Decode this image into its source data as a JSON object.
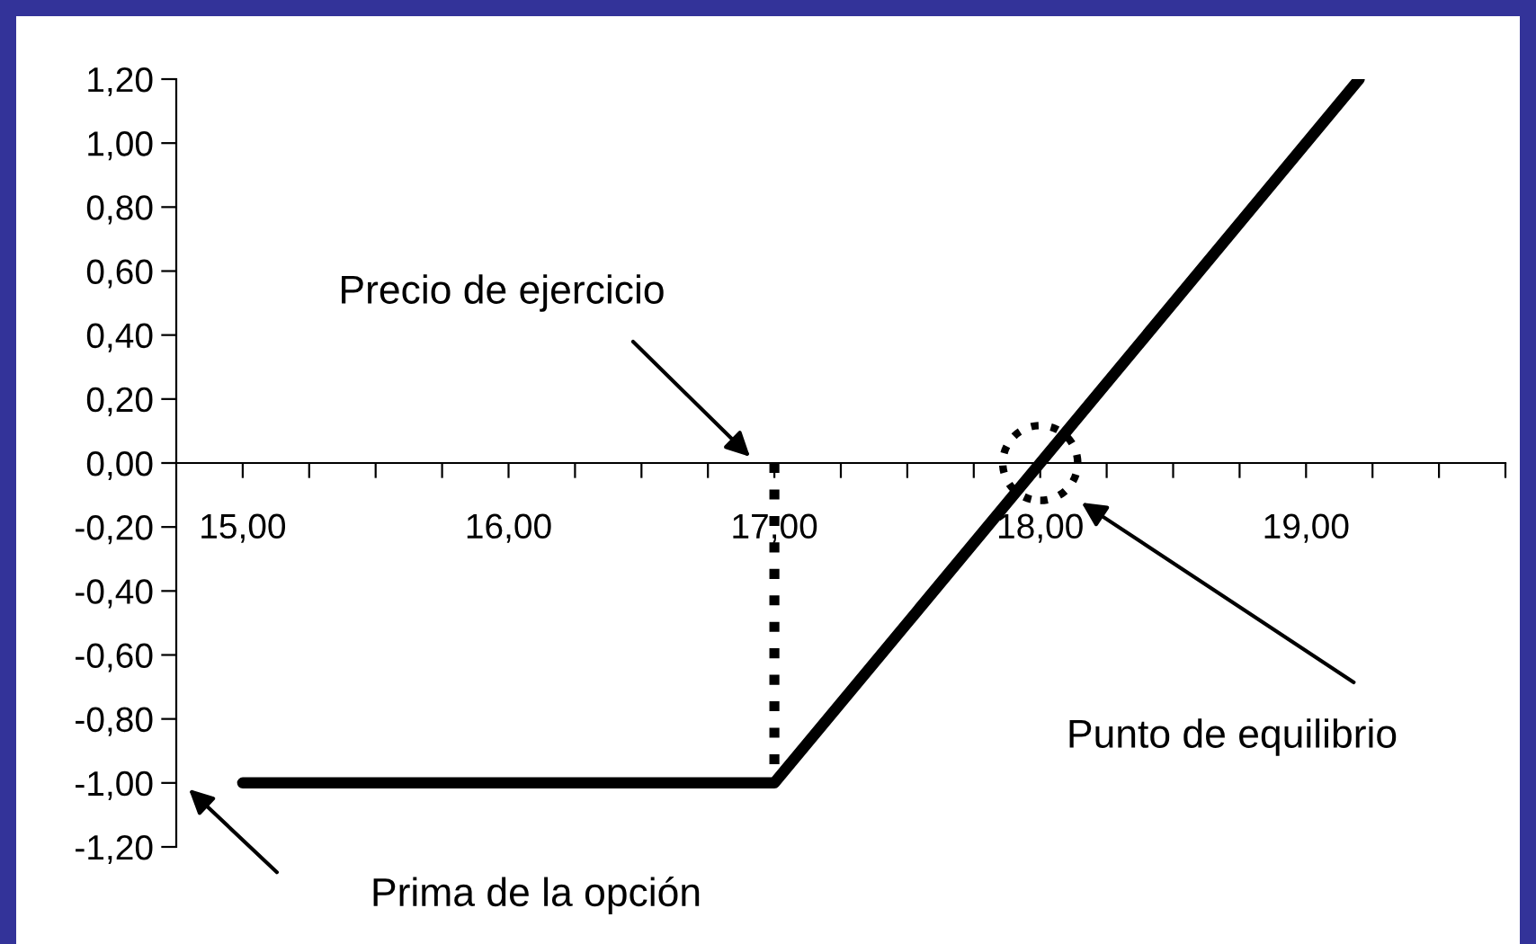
{
  "chart_data": {
    "type": "line",
    "series": [
      {
        "color": "#000000",
        "x": [
          15,
          17,
          19.2
        ],
        "values": [
          -1,
          -1,
          1.2
        ],
        "line_style": "solid",
        "marker": "none"
      },
      {
        "type": "line",
        "color": "#000000",
        "x": [
          17,
          17
        ],
        "values": [
          0,
          -1
        ],
        "line_style": "dotted",
        "marker": "none"
      },
      {
        "type": "scatter",
        "color": "#000000",
        "x": [
          18
        ],
        "values": [
          0
        ],
        "marker": "circle",
        "line_style": "dotted"
      }
    ],
    "xlim": [
      14.75,
      19.75
    ],
    "xticks": [
      {
        "value": 15,
        "label": "15,00"
      },
      {
        "value": 15.25,
        "label": null
      },
      {
        "value": 15.5,
        "label": null
      },
      {
        "value": 15.75,
        "label": null
      },
      {
        "value": 16,
        "label": "16,00"
      },
      {
        "value": 16.25,
        "label": null
      },
      {
        "value": 16.5,
        "label": null
      },
      {
        "value": 16.75,
        "label": null
      },
      {
        "value": 17,
        "label": "17,00"
      },
      {
        "value": 17.25,
        "label": null
      },
      {
        "value": 17.5,
        "label": null
      },
      {
        "value": 17.75,
        "label": null
      },
      {
        "value": 18,
        "label": "18,00"
      },
      {
        "value": 18.25,
        "label": null
      },
      {
        "value": 18.5,
        "label": null
      },
      {
        "value": 18.75,
        "label": null
      },
      {
        "value": 19,
        "label": "19,00"
      },
      {
        "value": 19.25,
        "label": null
      },
      {
        "value": 19.5,
        "label": null
      },
      {
        "value": 19.75,
        "label": null
      }
    ],
    "ylim": [
      -1.2,
      1.2
    ],
    "yticks": [
      {
        "value": -1.2,
        "label": "-1,20"
      },
      {
        "value": -1.0,
        "label": "-1,00"
      },
      {
        "value": -0.8,
        "label": "-0,80"
      },
      {
        "value": -0.6,
        "label": "-0,60"
      },
      {
        "value": -0.4,
        "label": "-0,40"
      },
      {
        "value": -0.2,
        "label": "-0,20"
      },
      {
        "value": 0,
        "label": "0,00"
      },
      {
        "value": 0.2,
        "label": "0,20"
      },
      {
        "value": 0.4,
        "label": "0,40"
      },
      {
        "value": 0.6,
        "label": "0,60"
      },
      {
        "value": 0.8,
        "label": "0,80"
      },
      {
        "value": 1.0,
        "label": "1,00"
      },
      {
        "value": 1.2,
        "label": "1,20"
      }
    ],
    "annotations": [
      "Precio de ejercicio",
      "Punto de equilibrio",
      "Prima de la opción"
    ],
    "grid": false,
    "legend": false
  }
}
